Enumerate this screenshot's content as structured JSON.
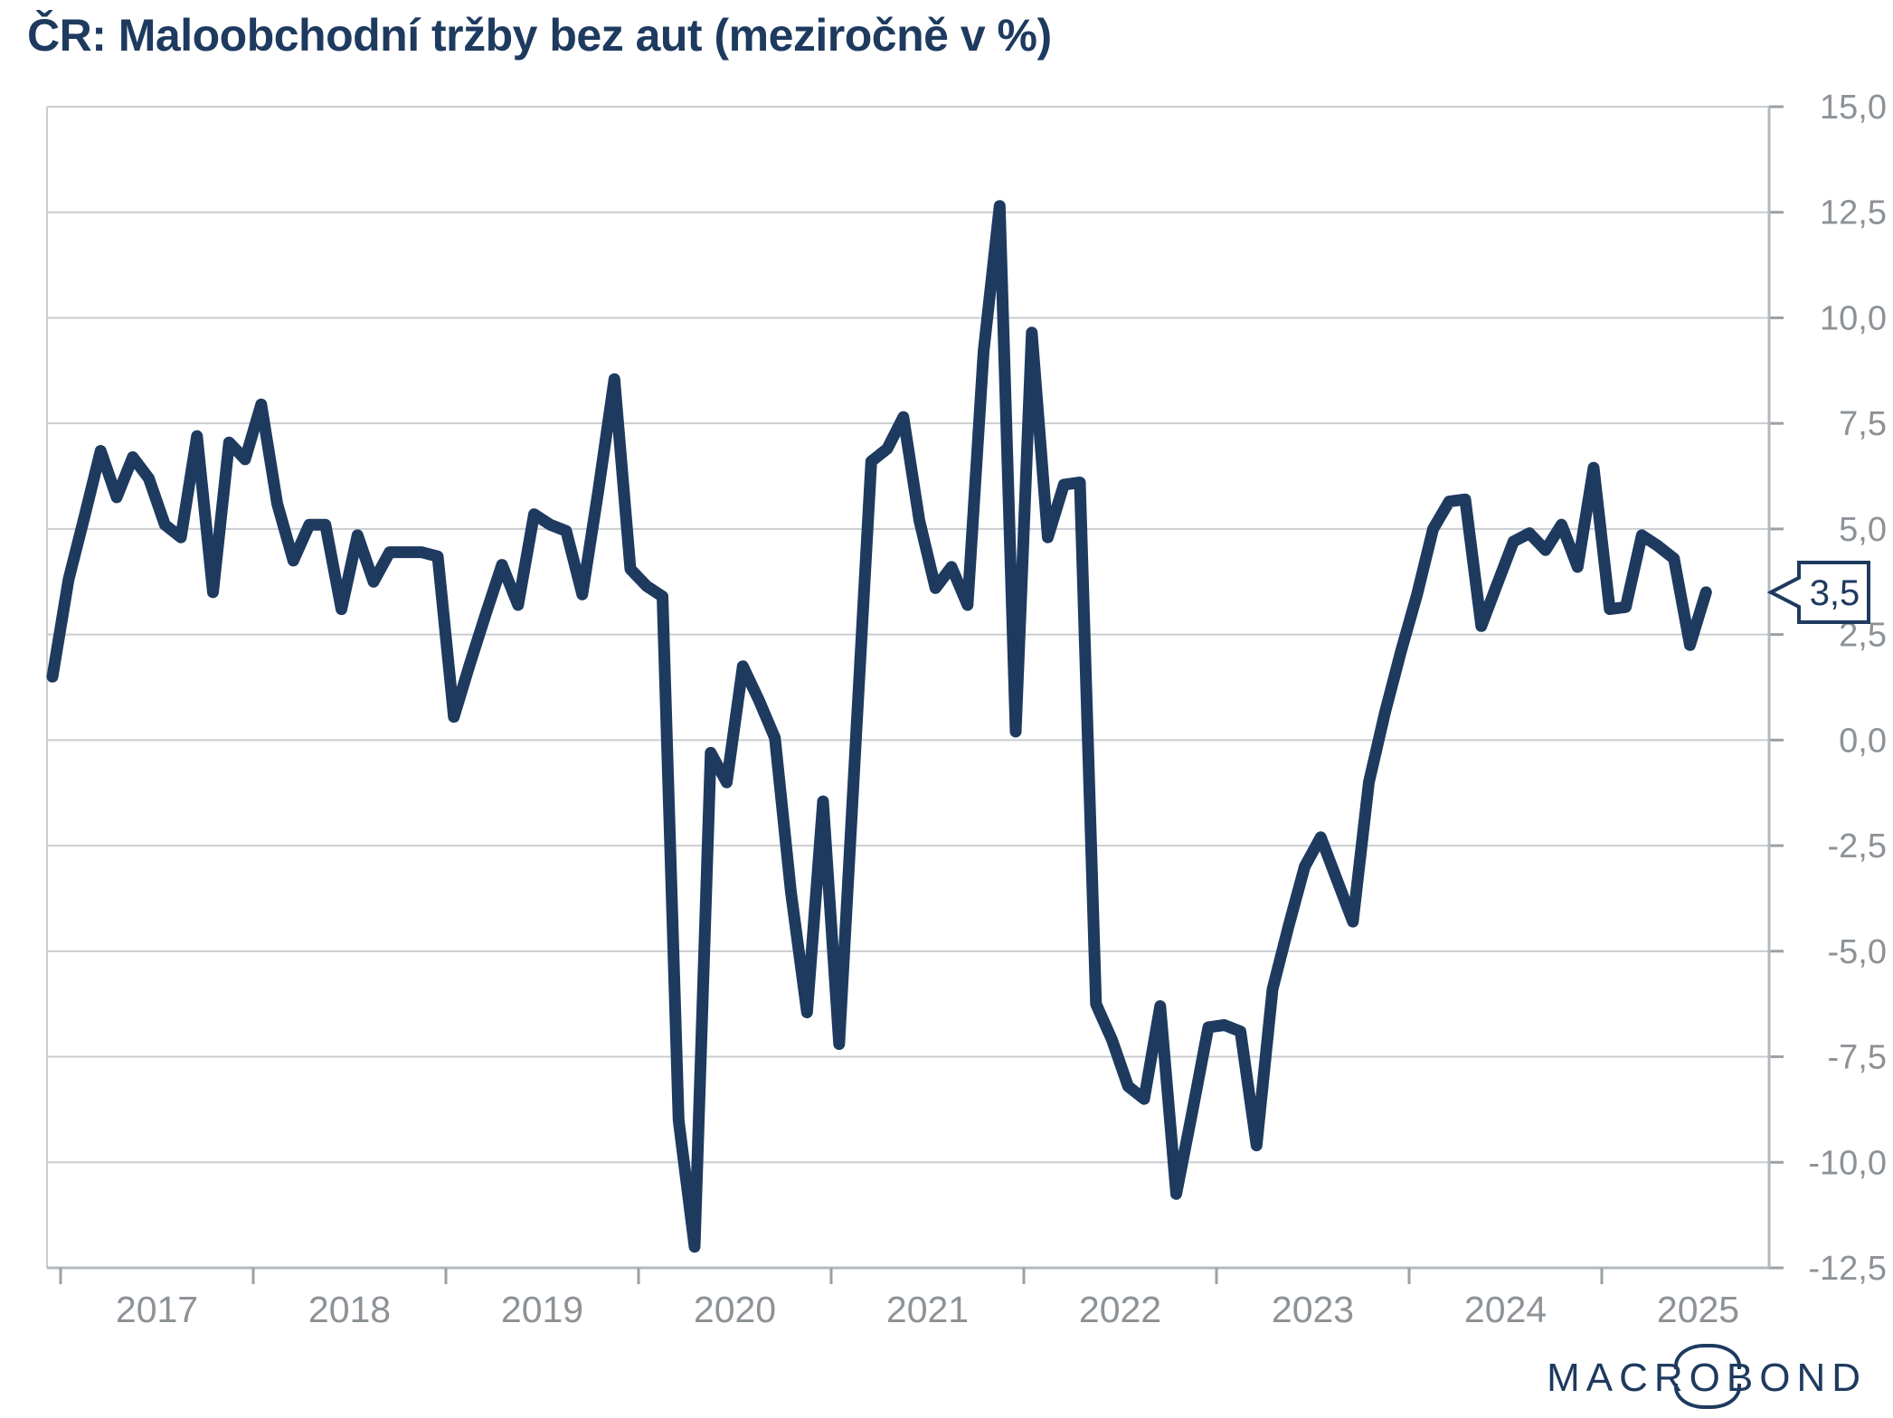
{
  "title": "ČR: Maloobchodní tržby bez aut (meziročně v %)",
  "callout": {
    "label": "3,5",
    "value": 3.5
  },
  "logo": {
    "part1": "MACR",
    "circled": "O",
    "part2": "BOND"
  },
  "colors": {
    "line": "#1e3a5f",
    "title": "#1e3a5f",
    "grid": "#c9cdd1",
    "axis": "#b3b8bc",
    "tick_mark": "#9aa0a5",
    "tick_label": "#8d9297",
    "callout_border": "#1e3a5f",
    "background": "#ffffff"
  },
  "chart_data": {
    "type": "line",
    "title": "ČR: Maloobchodní tržby bez aut (meziročně v %)",
    "xlabel": "",
    "ylabel": "meziročně v %",
    "ylim": [
      -12.5,
      15.0
    ],
    "y_tick_step": 2.5,
    "grid": true,
    "legend": false,
    "y_tick_labels": [
      "15,0",
      "12,5",
      "10,0",
      "7,5",
      "5,0",
      "2,5",
      "0,0",
      "-2,5",
      "-5,0",
      "-7,5",
      "-10,0",
      "-12,5"
    ],
    "x_year_labels": [
      "2017",
      "2018",
      "2019",
      "2020",
      "2021",
      "2022",
      "2023",
      "2024",
      "2025"
    ],
    "start_month": "2016-12",
    "end_month": "2025-07",
    "last_value_label": "3,5",
    "series": [
      {
        "name": "Maloobchodní tržby bez aut, meziročně v %",
        "monthly_values": [
          1.5,
          3.8,
          5.3,
          6.85,
          5.75,
          6.7,
          6.2,
          5.1,
          4.8,
          7.2,
          3.5,
          7.05,
          6.65,
          7.95,
          5.6,
          4.25,
          5.1,
          5.1,
          3.1,
          4.85,
          3.75,
          4.45,
          4.45,
          4.45,
          4.35,
          0.55,
          1.8,
          3.0,
          4.15,
          3.2,
          5.35,
          5.1,
          4.95,
          3.45,
          5.9,
          8.55,
          4.05,
          3.65,
          3.4,
          -9.0,
          -12.0,
          -0.3,
          -1.0,
          1.75,
          0.95,
          0.05,
          -3.6,
          -6.45,
          -1.45,
          -7.2,
          -0.3,
          6.6,
          6.9,
          7.65,
          5.2,
          3.6,
          4.1,
          3.2,
          9.2,
          12.65,
          0.2,
          9.65,
          4.8,
          6.05,
          6.1,
          -6.25,
          -7.1,
          -8.2,
          -8.5,
          -6.3,
          -10.75,
          -8.8,
          -6.8,
          -6.75,
          -6.9,
          -9.6,
          -5.9,
          -4.4,
          -3.0,
          -2.3,
          -3.3,
          -4.3,
          -1.0,
          0.65,
          2.1,
          3.45,
          5.0,
          5.65,
          5.7,
          2.7,
          3.7,
          4.7,
          4.9,
          4.5,
          5.1,
          4.1,
          6.45,
          3.1,
          3.15,
          4.85,
          4.6,
          4.3,
          2.25,
          3.5
        ]
      }
    ]
  }
}
